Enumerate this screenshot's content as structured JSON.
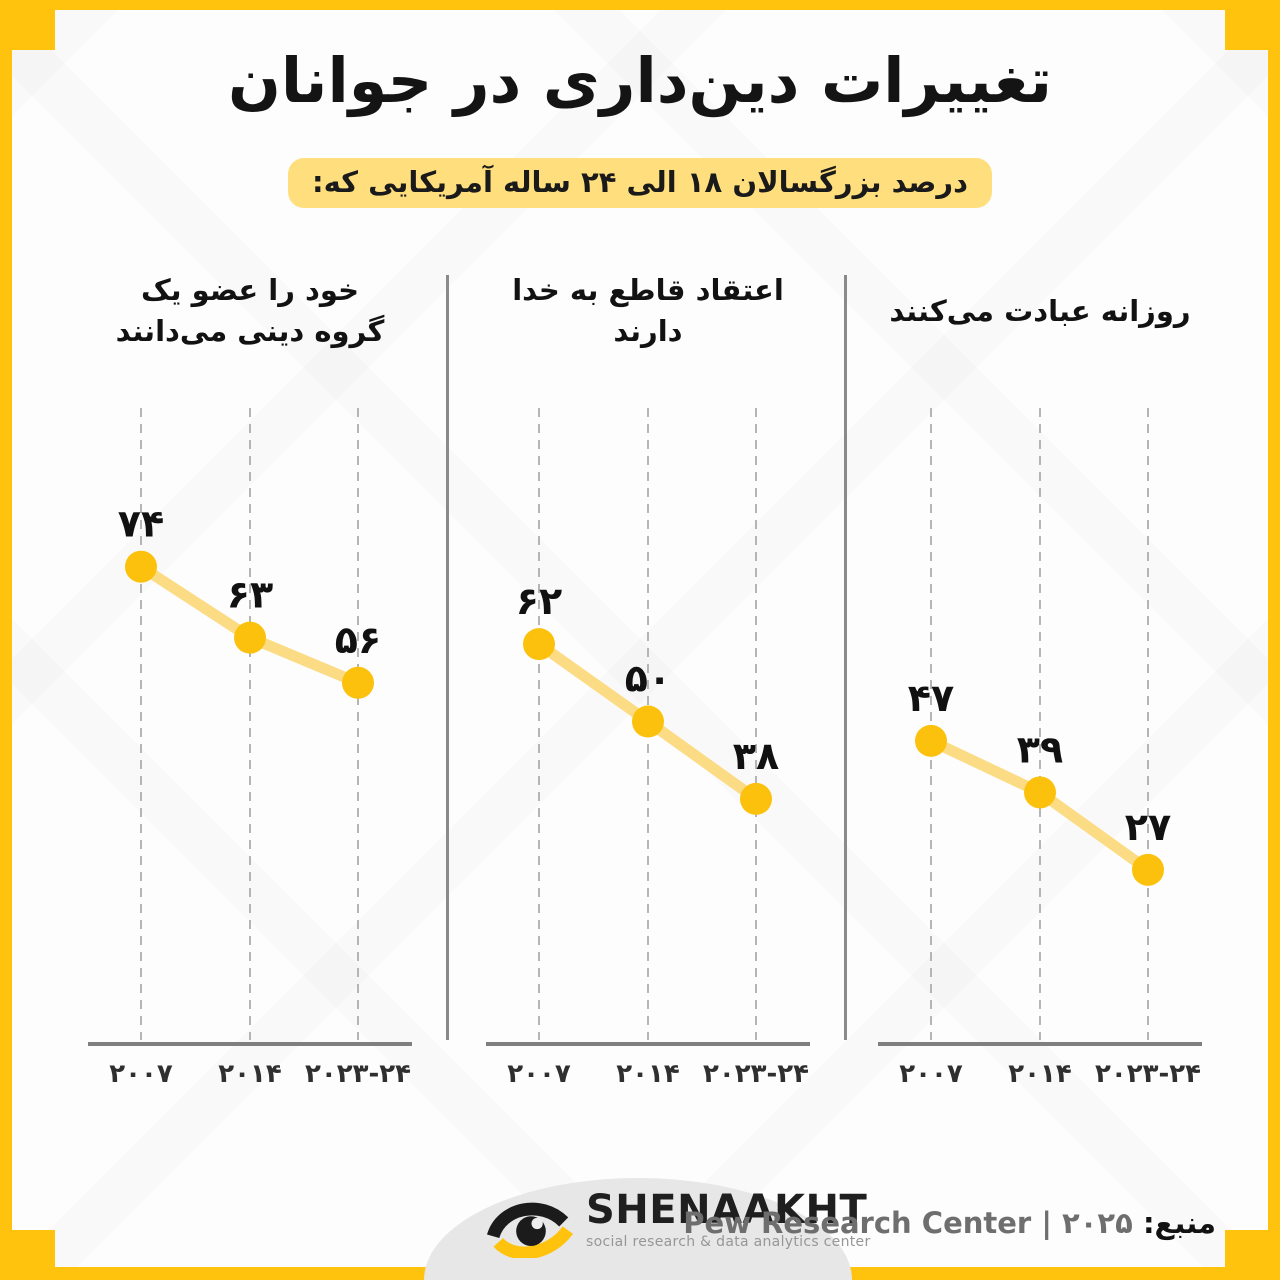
{
  "frame": {
    "color": "#FFC20D"
  },
  "header": {
    "title": "تغییرات دین‌داری در جوانان",
    "subtitle": "درصد بزرگسالان ۱۸ الی ۲۴ ساله آمریکایی که:",
    "subtitle_highlight_color": "#FFDF7D"
  },
  "chart_data": {
    "type": "line",
    "panels_order": "visual-left-to-right",
    "direction": "rtl",
    "categories": [
      "۲۰۰۷",
      "۲۰۱۴",
      "۲۰۲۳-۲۴"
    ],
    "categories_years": [
      "2007",
      "2014",
      "2023-24"
    ],
    "unit": "percent",
    "ylim": [
      0,
      100
    ],
    "grid": "vertical-dashed",
    "legend": "none",
    "panels": [
      {
        "title": "خود را عضو یک گروه دینی می‌دانند",
        "values": [
          74,
          63,
          56
        ],
        "value_labels": [
          "۷۴",
          "۶۳",
          "۵۶"
        ]
      },
      {
        "title": "اعتقاد قاطع به خدا دارند",
        "values": [
          62,
          50,
          38
        ],
        "value_labels": [
          "۶۲",
          "۵۰",
          "۳۸"
        ]
      },
      {
        "title": "روزانه عبادت می‌کنند",
        "values": [
          47,
          39,
          27
        ],
        "value_labels": [
          "۴۷",
          "۳۹",
          "۲۷"
        ]
      }
    ],
    "colors": {
      "point": "#FCC10D",
      "line": "#FBDC85",
      "grid": "#B5B5B5",
      "axis": "#7F7F7F",
      "value_label": "#111111",
      "tick_label": "#2F2F2F"
    }
  },
  "footer": {
    "logo_text": "SHENAAKHT",
    "logo_tagline": "social research & data analytics center",
    "source_label": "منبع:",
    "source_value": "۲۰۲۵ | Pew Research Center"
  }
}
